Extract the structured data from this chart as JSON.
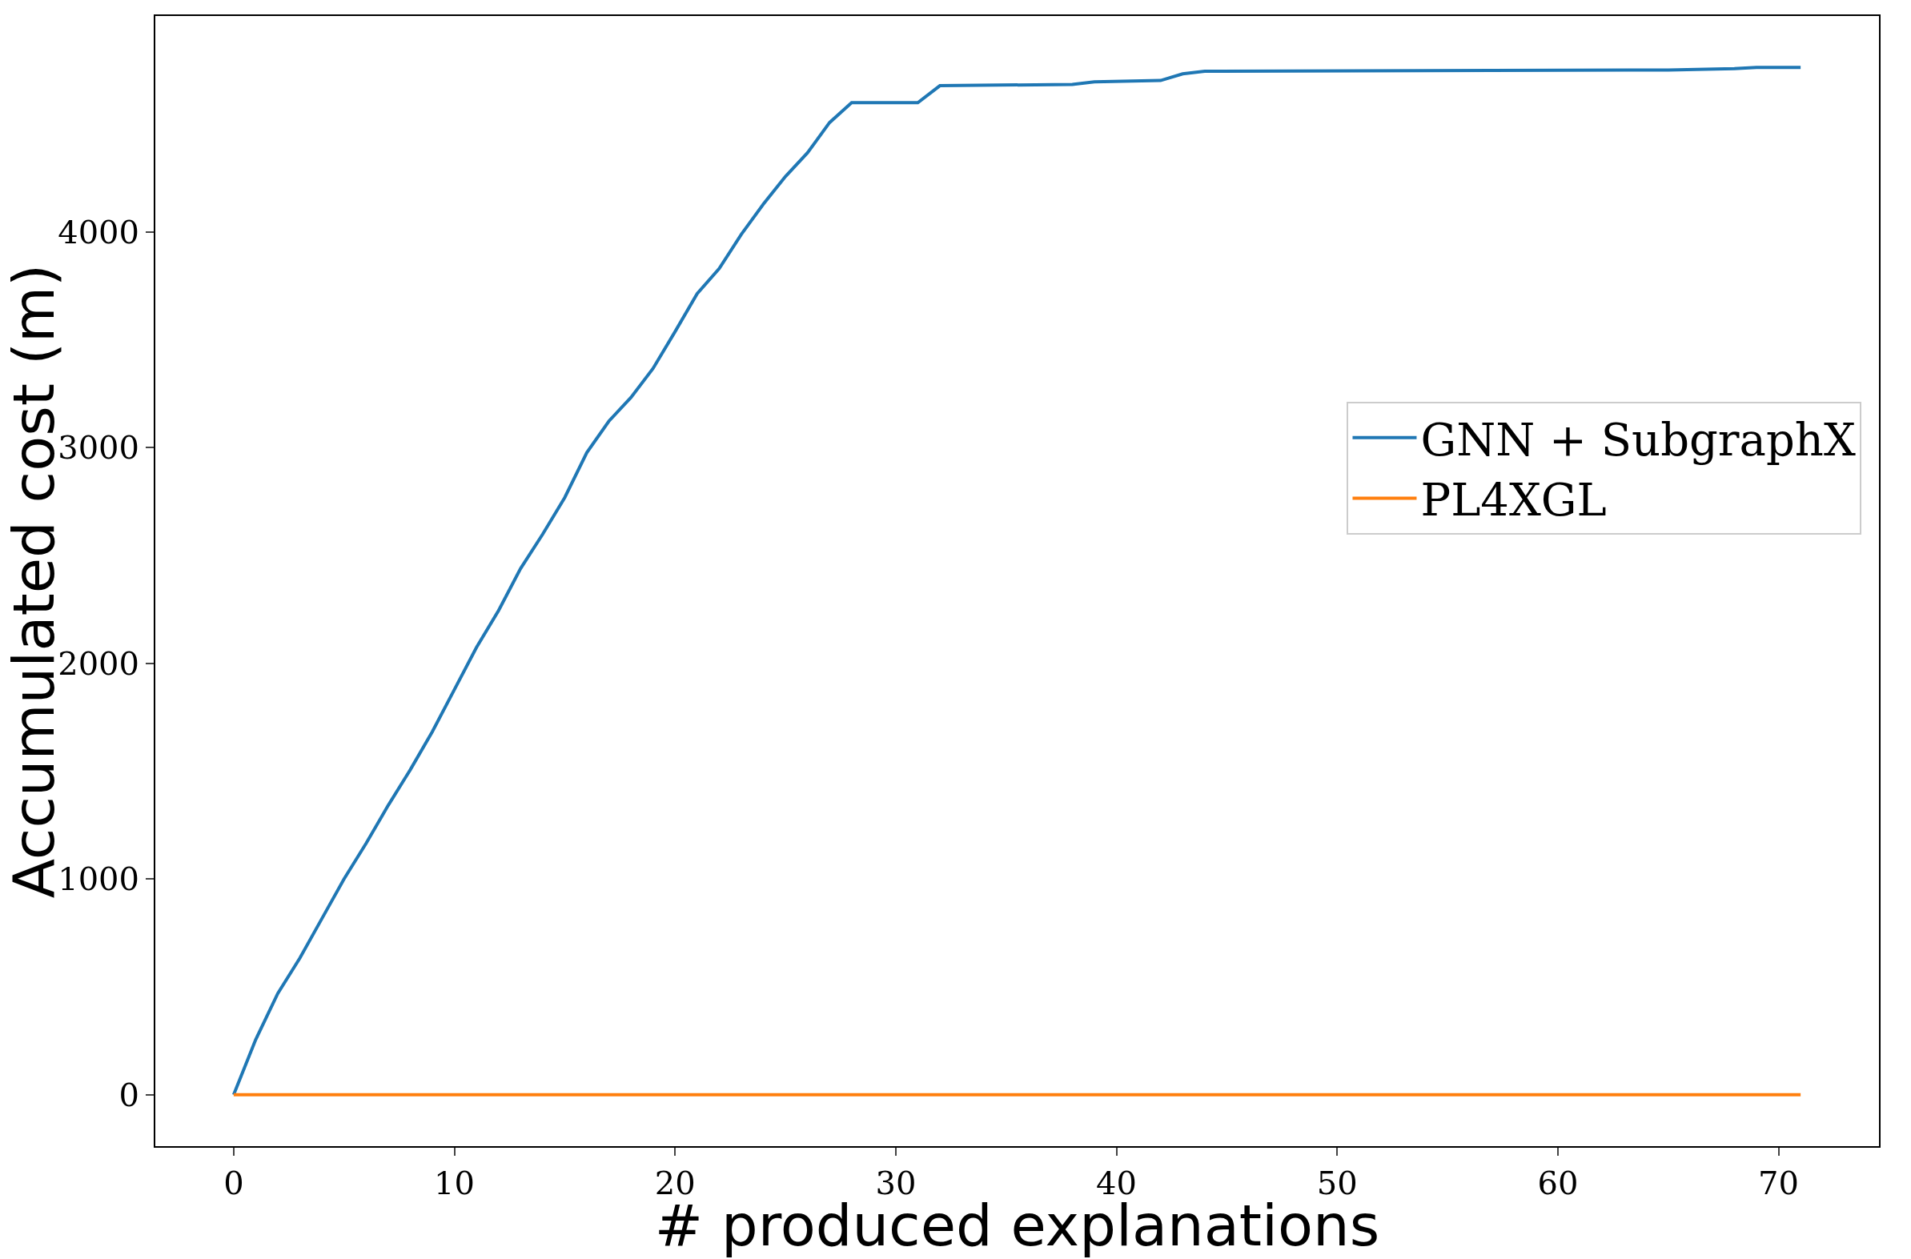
{
  "chart_data": {
    "type": "line",
    "xlabel": "# produced explanations",
    "ylabel": "Accumulated cost (m)",
    "xlim": [
      -3.55,
      74.55
    ],
    "ylim": [
      -238,
      5000
    ],
    "xticks": [
      0,
      10,
      20,
      30,
      40,
      50,
      60,
      70
    ],
    "yticks": [
      0,
      1000,
      2000,
      3000,
      4000
    ],
    "legend": "right",
    "marker": "none",
    "line_style": "solid",
    "series": [
      {
        "name": "GNN + SubgraphX",
        "color": "#1f77b4",
        "x": [
          0,
          1,
          2,
          3,
          4,
          5,
          6,
          7,
          8,
          9,
          10,
          11,
          12,
          13,
          14,
          15,
          16,
          17,
          18,
          19,
          20,
          21,
          22,
          23,
          24,
          25,
          26,
          27,
          28,
          31,
          32,
          38,
          39,
          42,
          43,
          44,
          65,
          68,
          69,
          71
        ],
        "values": [
          0,
          256,
          470,
          634,
          817,
          1000,
          1165,
          1341,
          1506,
          1683,
          1878,
          2073,
          2244,
          2439,
          2598,
          2768,
          2976,
          3122,
          3232,
          3366,
          3537,
          3713,
          3829,
          3988,
          4128,
          4256,
          4366,
          4506,
          4598,
          4598,
          4677,
          4683,
          4695,
          4701,
          4732,
          4744,
          4750,
          4756,
          4762,
          4762
        ]
      },
      {
        "name": "PL4XGL",
        "color": "#ff7f0e",
        "x": [
          0,
          71
        ],
        "values": [
          0,
          0
        ]
      }
    ]
  }
}
